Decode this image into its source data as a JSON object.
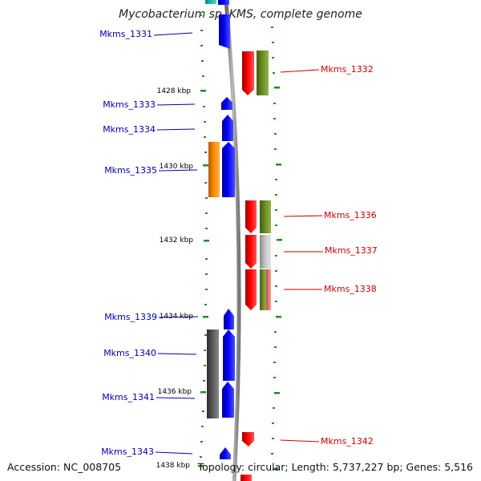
{
  "title": "Mycobacterium sp. KMS, complete genome",
  "accession_text": "Accession: NC_008705",
  "summary_text": "Topology: circular; Length: 5,737,227 bp; Genes: 5,516",
  "colors": {
    "backbone": "#8c8c8c",
    "minus_label": "#0000aa",
    "plus_label": "#cc0000",
    "tick": "#228b22"
  },
  "scale_labels": [
    "1428 kbp",
    "1430 kbp",
    "1432 kbp",
    "1434 kbp",
    "1436 kbp",
    "1438 kbp"
  ],
  "genes_minus_strand": [
    {
      "label": "Mkms_1331",
      "color": "#0000ff",
      "cog_color": null
    },
    {
      "label": "Mkms_1333",
      "color": "#0000ff",
      "cog_color": null
    },
    {
      "label": "Mkms_1334",
      "color": "#0000ff",
      "cog_color": null
    },
    {
      "label": "Mkms_1335",
      "color": "#0000ff",
      "cog_color": "#ff8c00"
    },
    {
      "label": "Mkms_1339",
      "color": "#0000ff",
      "cog_color": null
    },
    {
      "label": "Mkms_1340",
      "color": "#0000ff",
      "cog_color": "#555555"
    },
    {
      "label": "Mkms_1341",
      "color": "#0000ff",
      "cog_color": "#555555"
    },
    {
      "label": "Mkms_1343",
      "color": "#0000ff",
      "cog_color": null
    }
  ],
  "genes_plus_strand": [
    {
      "label": "Mkms_1332",
      "color": "#ff0000",
      "cog_color": "#6b8e23"
    },
    {
      "label": "Mkms_1336",
      "color": "#ff0000",
      "cog_color": "#6b8e23"
    },
    {
      "label": "Mkms_1337",
      "color": "#ff0000",
      "cog_color": "#c0c0c0"
    },
    {
      "label": "Mkms_1338",
      "color": "#ff0000",
      "cog_color": "#6b8e23"
    },
    {
      "label": "Mkms_1342",
      "color": "#ff0000",
      "cog_color": null
    }
  ]
}
